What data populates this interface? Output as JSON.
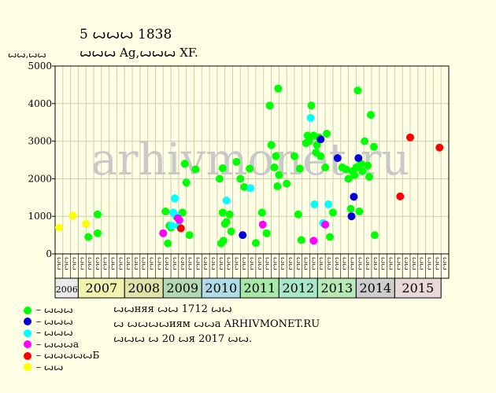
{
  "title": "5 ꙍꙍꙍ 1838",
  "subtitle": "ꙍꙍꙍ Ag,ꙍꙍꙍ XF.",
  "y_unit": "ꙍꙍ,ꙍꙍ",
  "watermark": "arhivmonet.ru",
  "info": {
    "line1": "ꙍꙍняя ꙍꙍ 1712 ꙍꙍ",
    "line2": "ꙍ ꙍꙍꙍꙍиям ꙍꙍа ARHIVMONET.RU",
    "line3": "ꙍꙍꙍ ꙍ 20 ꙍя 2017 ꙍꙍ."
  },
  "legend": [
    {
      "label": "– ꙍꙍꙍ",
      "color": "#00ff00"
    },
    {
      "label": "– ꙍꙍꙍ",
      "color": "#0000dd"
    },
    {
      "label": "– ꙍꙍꙍ",
      "color": "#00ffff"
    },
    {
      "label": "– ꙍꙍꙍа",
      "color": "#ff00ff"
    },
    {
      "label": "– ꙍꙍꙍꙍꙍБ",
      "color": "#ff0000"
    },
    {
      "label": "– ꙍꙍ",
      "color": "#ffff00"
    }
  ],
  "chart_data": {
    "type": "scatter",
    "ylim": [
      0,
      5000
    ],
    "yticks": [
      "0",
      "1000",
      "2000",
      "3000",
      "4000",
      "5000"
    ],
    "years": [
      {
        "label": "2006",
        "color": "#eaeaea"
      },
      {
        "label": "2007",
        "color": "#f3f3b0"
      },
      {
        "label": "2008",
        "color": "#dfe3a8"
      },
      {
        "label": "2009",
        "color": "#b4d8b4"
      },
      {
        "label": "2010",
        "color": "#b0dce8"
      },
      {
        "label": "2011",
        "color": "#a8e8a8"
      },
      {
        "label": "2012",
        "color": "#a8e8c8"
      },
      {
        "label": "2013",
        "color": "#b8e8b8"
      },
      {
        "label": "2014",
        "color": "#cdcdcd"
      },
      {
        "label": "2015",
        "color": "#e8d8d8"
      }
    ],
    "month_labels": [
      "ꙍꙍ",
      "ꙍꙍ",
      "ꙍꙍ",
      "ꙍꙍ",
      "ꙍꙍ",
      "ꙍꙍ",
      "ꙍꙍ",
      "ꙍꙍ",
      "ꙍꙍ",
      "ꙍꙍ",
      "ꙍꙍ",
      "ꙍꙍ",
      "ꙍꙍ",
      "ꙍꙍ",
      "ꙍꙍ",
      "ꙍꙍ",
      "ꙍꙍ",
      "ꙍꙍ",
      "ꙍꙍ",
      "ꙍꙍ",
      "ꙍꙍ",
      "ꙍꙍ",
      "ꙍꙍ",
      "ꙍꙍ",
      "ꙍꙍ",
      "ꙍꙍ",
      "ꙍꙍ",
      "ꙍꙍ",
      "ꙍꙍ",
      "ꙍꙍ",
      "ꙍꙍ",
      "ꙍꙍ",
      "ꙍꙍ",
      "ꙍꙍ",
      "ꙍꙍ",
      "ꙍꙍ",
      "ꙍꙍ",
      "ꙍꙍ",
      "ꙍꙍ",
      "ꙍꙍ",
      "ꙍꙍ",
      "ꙍꙍ",
      "ꙍꙍ",
      "ꙍꙍ",
      "ꙍꙍ",
      "ꙍꙍ",
      "ꙍꙍ",
      "ꙍꙍ",
      "ꙍꙍ",
      "ꙍꙍ",
      "ꙍꙍ"
    ],
    "series": [
      {
        "name": "– ꙍꙍꙍ",
        "color": "#00ff00",
        "points": [
          [
            4.3,
            450
          ],
          [
            5.5,
            1050
          ],
          [
            5.5,
            550
          ],
          [
            14.3,
            1130
          ],
          [
            14.6,
            280
          ],
          [
            14.8,
            750
          ],
          [
            15.0,
            700
          ],
          [
            15.7,
            1000
          ],
          [
            16.5,
            1100
          ],
          [
            16.8,
            2400
          ],
          [
            17.0,
            1900
          ],
          [
            17.4,
            500
          ],
          [
            18.2,
            2250
          ],
          [
            21.3,
            2000
          ],
          [
            21.5,
            280
          ],
          [
            21.7,
            2280
          ],
          [
            21.7,
            1100
          ],
          [
            21.8,
            350
          ],
          [
            22.0,
            800
          ],
          [
            22.2,
            850
          ],
          [
            22.6,
            1050
          ],
          [
            22.8,
            600
          ],
          [
            23.5,
            2450
          ],
          [
            24.0,
            2000
          ],
          [
            24.5,
            1780
          ],
          [
            25.2,
            2270
          ],
          [
            26.0,
            290
          ],
          [
            26.8,
            1100
          ],
          [
            27.4,
            550
          ],
          [
            27.8,
            3950
          ],
          [
            28.0,
            2900
          ],
          [
            28.4,
            2300
          ],
          [
            28.8,
            1800
          ],
          [
            28.6,
            2600
          ],
          [
            28.9,
            4400
          ],
          [
            29.0,
            2100
          ],
          [
            30.0,
            1870
          ],
          [
            31.0,
            2600
          ],
          [
            31.5,
            1050
          ],
          [
            31.7,
            2270
          ],
          [
            31.9,
            370
          ],
          [
            32.5,
            2950
          ],
          [
            32.7,
            3150
          ],
          [
            32.9,
            3000
          ],
          [
            33.2,
            3950
          ],
          [
            33.5,
            3150
          ],
          [
            33.8,
            2700
          ],
          [
            33.9,
            2900
          ],
          [
            34.2,
            3100
          ],
          [
            34.4,
            2600
          ],
          [
            35.0,
            2300
          ],
          [
            35.2,
            3200
          ],
          [
            35.6,
            450
          ],
          [
            36.0,
            1100
          ],
          [
            37.2,
            2300
          ],
          [
            37.7,
            2250
          ],
          [
            38.0,
            2000
          ],
          [
            38.3,
            1200
          ],
          [
            38.5,
            2200
          ],
          [
            38.8,
            2100
          ],
          [
            39.0,
            2300
          ],
          [
            39.2,
            4350
          ],
          [
            39.4,
            1130
          ],
          [
            39.6,
            2400
          ],
          [
            39.8,
            2200
          ],
          [
            40.1,
            3000
          ],
          [
            40.5,
            2350
          ],
          [
            40.7,
            2050
          ],
          [
            40.9,
            3700
          ],
          [
            41.3,
            2850
          ],
          [
            41.4,
            500
          ]
        ]
      },
      {
        "name": "– ꙍꙍꙍ",
        "color": "#0000dd",
        "points": [
          [
            24.3,
            500
          ],
          [
            34.4,
            3050
          ],
          [
            36.6,
            2550
          ],
          [
            38.4,
            1000
          ],
          [
            38.7,
            1520
          ],
          [
            39.3,
            2550
          ]
        ]
      },
      {
        "name": "– ꙍꙍꙍ",
        "color": "#00ffff",
        "points": [
          [
            15.1,
            750
          ],
          [
            15.3,
            1100
          ],
          [
            15.5,
            1480
          ],
          [
            15.8,
            1000
          ],
          [
            16.0,
            750
          ],
          [
            22.2,
            1420
          ],
          [
            25.3,
            1750
          ],
          [
            33.1,
            3620
          ],
          [
            33.6,
            1320
          ],
          [
            34.7,
            820
          ],
          [
            35.4,
            1320
          ]
        ]
      },
      {
        "name": "– ꙍꙍꙍа",
        "color": "#ff00ff",
        "points": [
          [
            14.0,
            550
          ],
          [
            15.9,
            950
          ],
          [
            16.1,
            900
          ],
          [
            26.9,
            780
          ],
          [
            33.5,
            350
          ],
          [
            35.0,
            780
          ]
        ]
      },
      {
        "name": "– ꙍꙍꙍꙍꙍБ",
        "color": "#ff0000",
        "points": [
          [
            16.3,
            680
          ],
          [
            44.7,
            1530
          ],
          [
            46.0,
            3100
          ],
          [
            49.8,
            2830
          ]
        ]
      },
      {
        "name": "– ꙍꙍ",
        "color": "#ffff00",
        "points": [
          [
            0.5,
            700
          ],
          [
            2.3,
            1020
          ],
          [
            4.0,
            800
          ]
        ]
      }
    ]
  }
}
